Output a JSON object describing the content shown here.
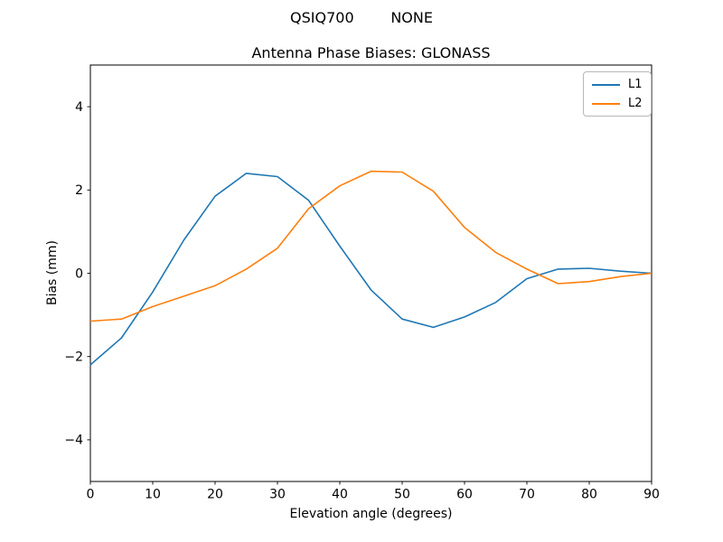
{
  "figure": {
    "suptitle": "QSIQ700        NONE",
    "background": "#ffffff"
  },
  "chart_data": {
    "type": "line",
    "title": "Antenna Phase Biases: GLONASS",
    "xlabel": "Elevation angle (degrees)",
    "ylabel": "Bias (mm)",
    "xlim": [
      0,
      90
    ],
    "ylim": [
      -5,
      5
    ],
    "xticks": [
      0,
      10,
      20,
      30,
      40,
      50,
      60,
      70,
      80,
      90
    ],
    "yticks": [
      -4,
      -2,
      0,
      2,
      4
    ],
    "grid": false,
    "legend_position": "upper right",
    "x": [
      0,
      5,
      10,
      15,
      20,
      25,
      30,
      35,
      40,
      45,
      50,
      55,
      60,
      65,
      70,
      75,
      80,
      85,
      90
    ],
    "series": [
      {
        "name": "L1",
        "color": "#1f77b4",
        "values": [
          -2.2,
          -1.55,
          -0.45,
          0.8,
          1.85,
          2.4,
          2.32,
          1.75,
          0.65,
          -0.4,
          -1.1,
          -1.3,
          -1.05,
          -0.7,
          -0.13,
          0.1,
          0.12,
          0.05,
          0.0
        ]
      },
      {
        "name": "L2",
        "color": "#ff7f0e",
        "values": [
          -1.15,
          -1.1,
          -0.8,
          -0.55,
          -0.3,
          0.1,
          0.6,
          1.55,
          2.1,
          2.45,
          2.43,
          1.97,
          1.1,
          0.5,
          0.1,
          -0.25,
          -0.2,
          -0.08,
          0.0
        ]
      }
    ]
  }
}
